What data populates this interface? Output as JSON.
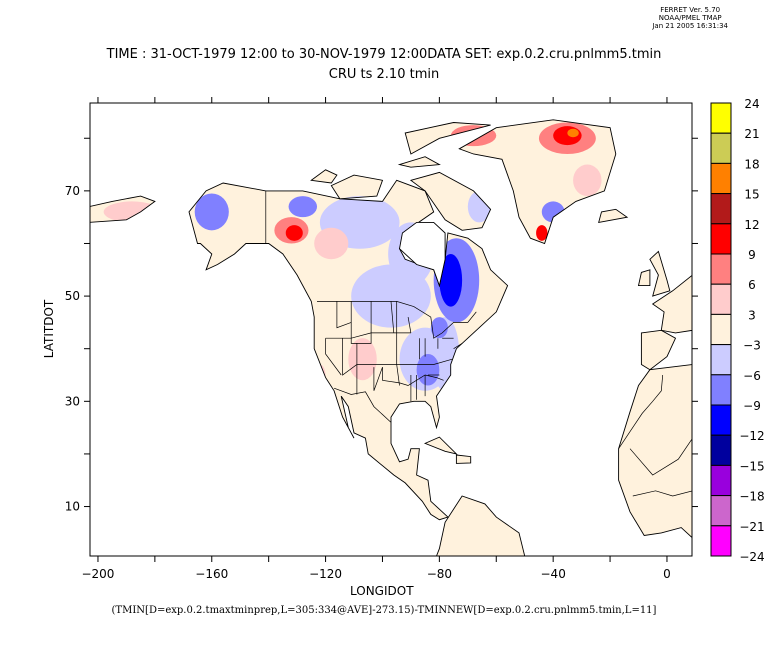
{
  "stamp": {
    "line1": "FERRET Ver. 5.70",
    "line2": "NOAA/PMEL TMAP",
    "line3": "Jan 21 2005 16:31:34"
  },
  "title": {
    "line1": "TIME : 31-OCT-1979 12:00 to 30-NOV-1979 12:00DATA SET: exp.0.2.cru.pnlmm5.tmin",
    "line2": "CRU ts 2.10 tmin"
  },
  "footer_expression": "(TMIN[D=exp.0.2.tmaxtminprep,L=305:334@AVE]-273.15)-TMINNEW[D=exp.0.2.cru.pnlmm5.tmin,L=11]",
  "chart_data": {
    "type": "heatmap",
    "xlabel": "LONGIDOT",
    "ylabel": "LATITDOT",
    "xlim": [
      -202.8,
      8.8
    ],
    "ylim": [
      0.6,
      86.7
    ],
    "xticks": [
      -200,
      -180,
      -160,
      -140,
      -120,
      -100,
      -80,
      -60,
      -40,
      -20,
      0
    ],
    "xtick_labels": [
      "-200",
      "",
      "-160",
      "",
      "-120",
      "",
      "-80",
      "",
      "-40",
      "",
      "0"
    ],
    "yticks": [
      10,
      20,
      30,
      40,
      50,
      60,
      70,
      80
    ],
    "ytick_labels": [
      "10",
      "",
      "30",
      "",
      "50",
      "",
      "70",
      ""
    ],
    "colorbar": {
      "levels": [
        "24",
        "21",
        "18",
        "15",
        "12",
        "9",
        "6",
        "3",
        "-3",
        "-6",
        "-9",
        "-12",
        "-15",
        "-18",
        "-21",
        "-24"
      ],
      "colors": [
        "#ffff00",
        "#cccc55",
        "#ff8000",
        "#b21a1a",
        "#ff0000",
        "#ff8080",
        "#ffcccc",
        "#fff2dd",
        "#ccccff",
        "#8080ff",
        "#0000ff",
        "#00009e",
        "#9900dd",
        "#cc66cc",
        "#ff00ff"
      ]
    }
  }
}
